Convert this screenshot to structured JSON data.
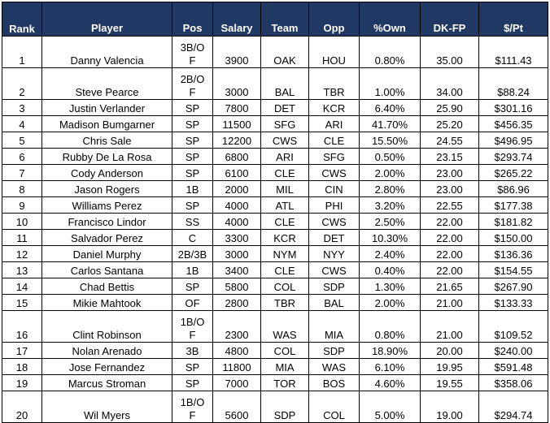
{
  "headers": {
    "rank": "Rank",
    "player": "Player",
    "pos": "Pos",
    "salary": "Salary",
    "team": "Team",
    "opp": "Opp",
    "own": "%Own",
    "dkfp": "DK-FP",
    "ppt": "$/Pt"
  },
  "rows": [
    {
      "rank": "1",
      "player": "Danny Valencia",
      "pos": "3B/OF",
      "salary": "3900",
      "team": "OAK",
      "opp": "HOU",
      "own": "0.80%",
      "dkfp": "35.00",
      "ppt": "$111.43"
    },
    {
      "rank": "2",
      "player": "Steve Pearce",
      "pos": "2B/OF",
      "salary": "3000",
      "team": "BAL",
      "opp": "TBR",
      "own": "1.00%",
      "dkfp": "34.00",
      "ppt": "$88.24"
    },
    {
      "rank": "3",
      "player": "Justin Verlander",
      "pos": "SP",
      "salary": "7800",
      "team": "DET",
      "opp": "KCR",
      "own": "6.40%",
      "dkfp": "25.90",
      "ppt": "$301.16"
    },
    {
      "rank": "4",
      "player": "Madison Bumgarner",
      "pos": "SP",
      "salary": "11500",
      "team": "SFG",
      "opp": "ARI",
      "own": "41.70%",
      "dkfp": "25.20",
      "ppt": "$456.35"
    },
    {
      "rank": "5",
      "player": "Chris Sale",
      "pos": "SP",
      "salary": "12200",
      "team": "CWS",
      "opp": "CLE",
      "own": "15.50%",
      "dkfp": "24.55",
      "ppt": "$496.95"
    },
    {
      "rank": "6",
      "player": "Rubby De La Rosa",
      "pos": "SP",
      "salary": "6800",
      "team": "ARI",
      "opp": "SFG",
      "own": "0.50%",
      "dkfp": "23.15",
      "ppt": "$293.74"
    },
    {
      "rank": "7",
      "player": "Cody Anderson",
      "pos": "SP",
      "salary": "6100",
      "team": "CLE",
      "opp": "CWS",
      "own": "2.00%",
      "dkfp": "23.00",
      "ppt": "$265.22"
    },
    {
      "rank": "8",
      "player": "Jason Rogers",
      "pos": "1B",
      "salary": "2000",
      "team": "MIL",
      "opp": "CIN",
      "own": "2.80%",
      "dkfp": "23.00",
      "ppt": "$86.96"
    },
    {
      "rank": "9",
      "player": "Williams Perez",
      "pos": "SP",
      "salary": "4000",
      "team": "ATL",
      "opp": "PHI",
      "own": "3.20%",
      "dkfp": "22.55",
      "ppt": "$177.38"
    },
    {
      "rank": "10",
      "player": "Francisco Lindor",
      "pos": "SS",
      "salary": "4000",
      "team": "CLE",
      "opp": "CWS",
      "own": "2.50%",
      "dkfp": "22.00",
      "ppt": "$181.82"
    },
    {
      "rank": "11",
      "player": "Salvador Perez",
      "pos": "C",
      "salary": "3300",
      "team": "KCR",
      "opp": "DET",
      "own": "10.30%",
      "dkfp": "22.00",
      "ppt": "$150.00"
    },
    {
      "rank": "12",
      "player": "Daniel Murphy",
      "pos": "2B/3B",
      "salary": "3000",
      "team": "NYM",
      "opp": "NYY",
      "own": "2.40%",
      "dkfp": "22.00",
      "ppt": "$136.36"
    },
    {
      "rank": "13",
      "player": "Carlos Santana",
      "pos": "1B",
      "salary": "3400",
      "team": "CLE",
      "opp": "CWS",
      "own": "0.40%",
      "dkfp": "22.00",
      "ppt": "$154.55"
    },
    {
      "rank": "14",
      "player": "Chad Bettis",
      "pos": "SP",
      "salary": "5800",
      "team": "COL",
      "opp": "SDP",
      "own": "1.30%",
      "dkfp": "21.65",
      "ppt": "$267.90"
    },
    {
      "rank": "15",
      "player": "Mikie Mahtook",
      "pos": "OF",
      "salary": "2800",
      "team": "TBR",
      "opp": "BAL",
      "own": "2.00%",
      "dkfp": "21.00",
      "ppt": "$133.33"
    },
    {
      "rank": "16",
      "player": "Clint Robinson",
      "pos": "1B/OF",
      "salary": "2300",
      "team": "WAS",
      "opp": "MIA",
      "own": "0.80%",
      "dkfp": "21.00",
      "ppt": "$109.52"
    },
    {
      "rank": "17",
      "player": "Nolan Arenado",
      "pos": "3B",
      "salary": "4800",
      "team": "COL",
      "opp": "SDP",
      "own": "18.90%",
      "dkfp": "20.00",
      "ppt": "$240.00"
    },
    {
      "rank": "18",
      "player": "Jose Fernandez",
      "pos": "SP",
      "salary": "11800",
      "team": "MIA",
      "opp": "WAS",
      "own": "6.10%",
      "dkfp": "19.95",
      "ppt": "$591.48"
    },
    {
      "rank": "19",
      "player": "Marcus Stroman",
      "pos": "SP",
      "salary": "7000",
      "team": "TOR",
      "opp": "BOS",
      "own": "4.60%",
      "dkfp": "19.55",
      "ppt": "$358.06"
    },
    {
      "rank": "20",
      "player": "Wil Myers",
      "pos": "1B/OF",
      "salary": "5600",
      "team": "SDP",
      "opp": "COL",
      "own": "5.00%",
      "dkfp": "19.00",
      "ppt": "$294.74"
    }
  ]
}
